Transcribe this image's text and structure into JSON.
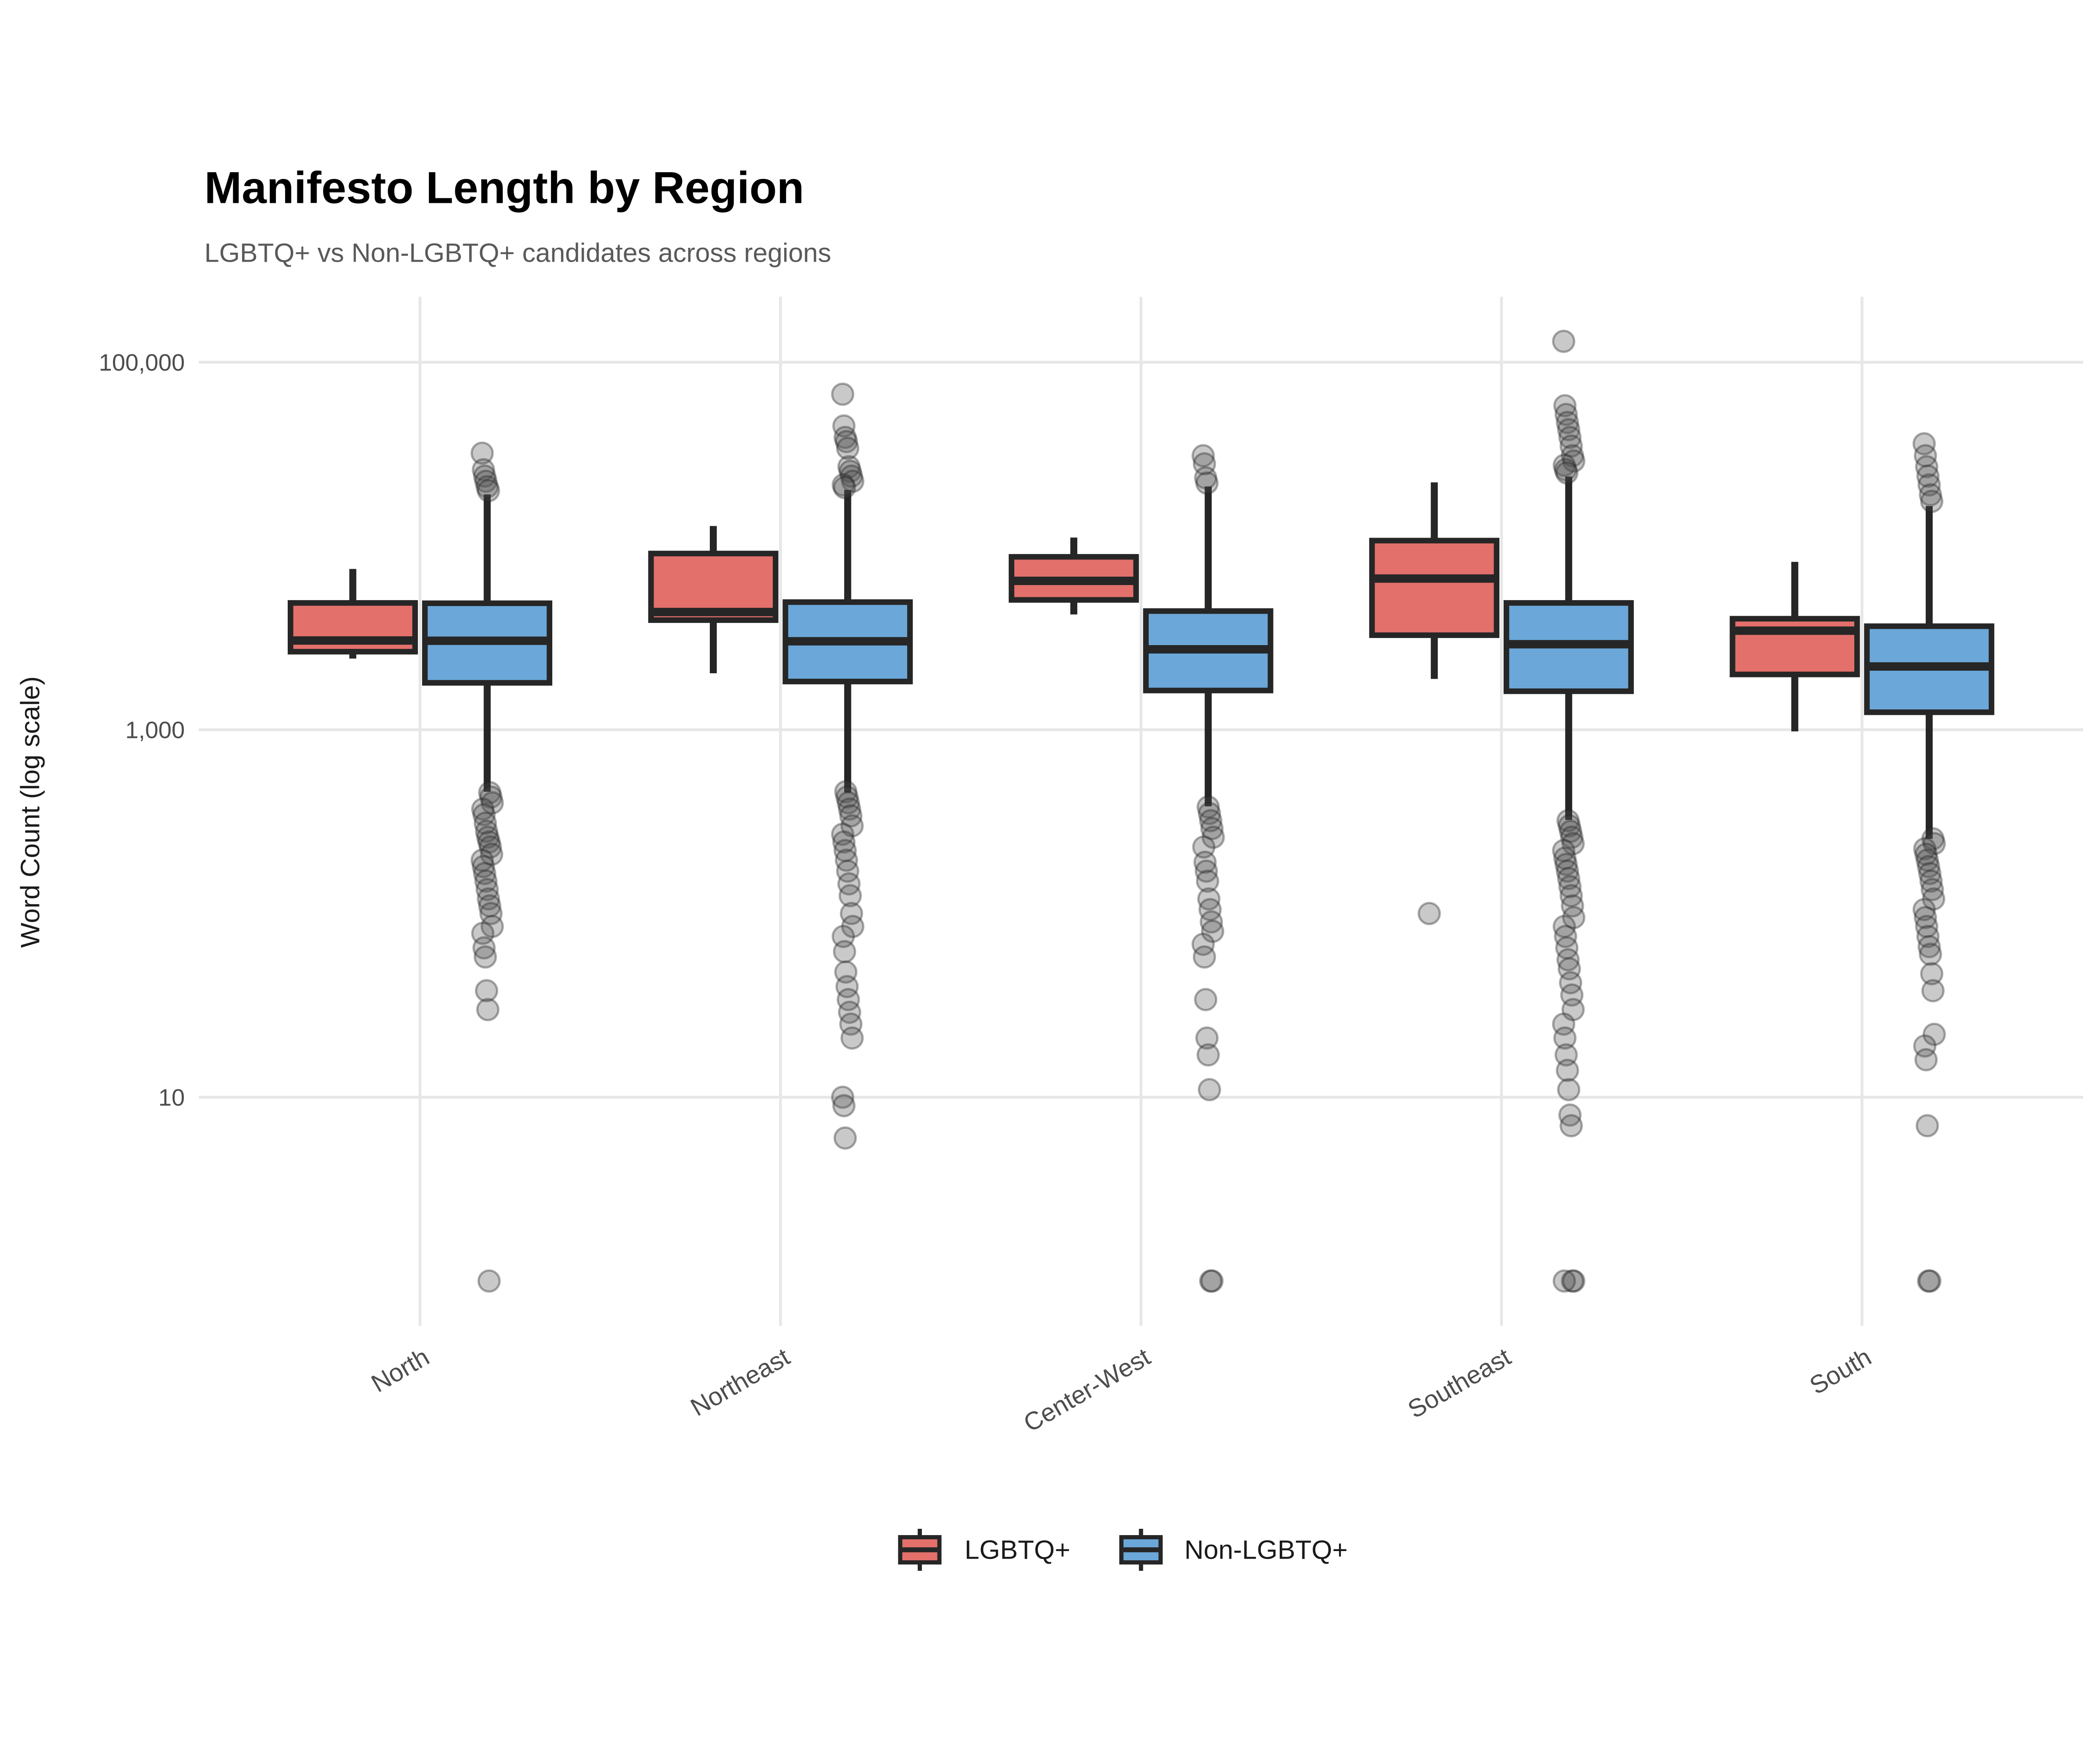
{
  "chart_data": {
    "type": "boxplot",
    "title": "Manifesto Length by Region",
    "subtitle": "LGBTQ+ vs Non-LGBTQ+ candidates across regions",
    "ylabel": "Word Count (log scale)",
    "xlabel": "",
    "scale": "log10",
    "ylim": [
      0.6,
      230000
    ],
    "grid": "major-only",
    "legend_position": "bottom",
    "y_ticks": [
      {
        "label": "100,000",
        "value": 100000
      },
      {
        "label": "1,000",
        "value": 1000
      },
      {
        "label": "10",
        "value": 10
      }
    ],
    "categories": [
      "North",
      "Northeast",
      "Center-West",
      "Southeast",
      "South"
    ],
    "colors": {
      "lgbtq_fill": "#E3706B",
      "non_lgbtq_fill": "#6BA7D8",
      "box_border": "#262626",
      "gridline": "#E7E7E7",
      "outlier_fill": "rgba(77,77,77,0.30)",
      "outlier_stroke": "rgba(38,38,38,0.38)"
    },
    "series": [
      {
        "name": "LGBTQ+",
        "color": "#E3706B",
        "boxes": [
          {
            "category": "North",
            "whislo": 2440,
            "q1": 2660,
            "med": 3060,
            "q3": 4900,
            "whishi": 7500,
            "outliers": []
          },
          {
            "category": "Northeast",
            "whislo": 2030,
            "q1": 3950,
            "med": 4370,
            "q3": 9100,
            "whishi": 12850,
            "outliers": []
          },
          {
            "category": "Center-West",
            "whislo": 4240,
            "q1": 5090,
            "med": 6460,
            "q3": 8730,
            "whishi": 11120,
            "outliers": []
          },
          {
            "category": "Southeast",
            "whislo": 1890,
            "q1": 3270,
            "med": 6650,
            "q3": 10700,
            "whishi": 22200,
            "outliers": [
              100
            ]
          },
          {
            "category": "South",
            "whislo": 980,
            "q1": 2000,
            "med": 3460,
            "q3": 4020,
            "whishi": 8200,
            "outliers": []
          }
        ]
      },
      {
        "name": "Non-LGBTQ+",
        "color": "#6BA7D8",
        "boxes": [
          {
            "category": "North",
            "whislo": 460,
            "q1": 1800,
            "med": 3050,
            "q3": 4880,
            "whishi": 19100,
            "outliers": [
              32000,
              26000,
              24000,
              22500,
              21000,
              20000,
              455,
              430,
              400,
              370,
              345,
              310,
              280,
              260,
              245,
              230,
              210,
              195,
              180,
              165,
              150,
              135,
              120,
              110,
              100,
              85,
              78,
              65,
              58,
              38,
              30,
              1
            ]
          },
          {
            "category": "Northeast",
            "whislo": 455,
            "q1": 1830,
            "med": 3030,
            "q3": 4950,
            "whishi": 20200,
            "outliers": [
              67000,
              45000,
              39000,
              37000,
              34000,
              27000,
              25500,
              24000,
              22500,
              21500,
              20800,
              460,
              430,
              400,
              370,
              340,
              300,
              270,
              245,
              220,
              195,
              170,
              145,
              125,
              100,
              85,
              75,
              62,
              48,
              40,
              34,
              29,
              25,
              21,
              10,
              9,
              6
            ]
          },
          {
            "category": "Center-West",
            "whislo": 383,
            "q1": 1635,
            "med": 2740,
            "q3": 4425,
            "whishi": 21100,
            "outliers": [
              31000,
              28000,
              23500,
              22000,
              380,
              350,
              320,
              290,
              260,
              230,
              190,
              170,
              150,
              120,
              105,
              90,
              80,
              68,
              58,
              34,
              21,
              17,
              11,
              1,
              1
            ]
          },
          {
            "category": "Southeast",
            "whislo": 323,
            "q1": 1620,
            "med": 2920,
            "q3": 4900,
            "whishi": 23900,
            "outliers": [
              130000,
              58000,
              52000,
              47000,
              43000,
              39000,
              35000,
              31000,
              29000,
              27500,
              26000,
              25000,
              320,
              300,
              280,
              260,
              240,
              220,
              200,
              185,
              170,
              155,
              140,
              125,
              110,
              95,
              85,
              75,
              65,
              56,
              50,
              42,
              36,
              30,
              25,
              21,
              17,
              14,
              11,
              8,
              7,
              1,
              1,
              1
            ]
          },
          {
            "category": "South",
            "whislo": 255,
            "q1": 1245,
            "med": 2210,
            "q3": 3660,
            "whishi": 16500,
            "outliers": [
              36000,
              31000,
              27000,
              24000,
              21500,
              19000,
              17500,
              255,
              240,
              225,
              210,
              195,
              180,
              165,
              150,
              135,
              120,
              105,
              95,
              85,
              75,
              66,
              60,
              47,
              38,
              22,
              19,
              16,
              7,
              1,
              1
            ]
          }
        ]
      }
    ]
  }
}
